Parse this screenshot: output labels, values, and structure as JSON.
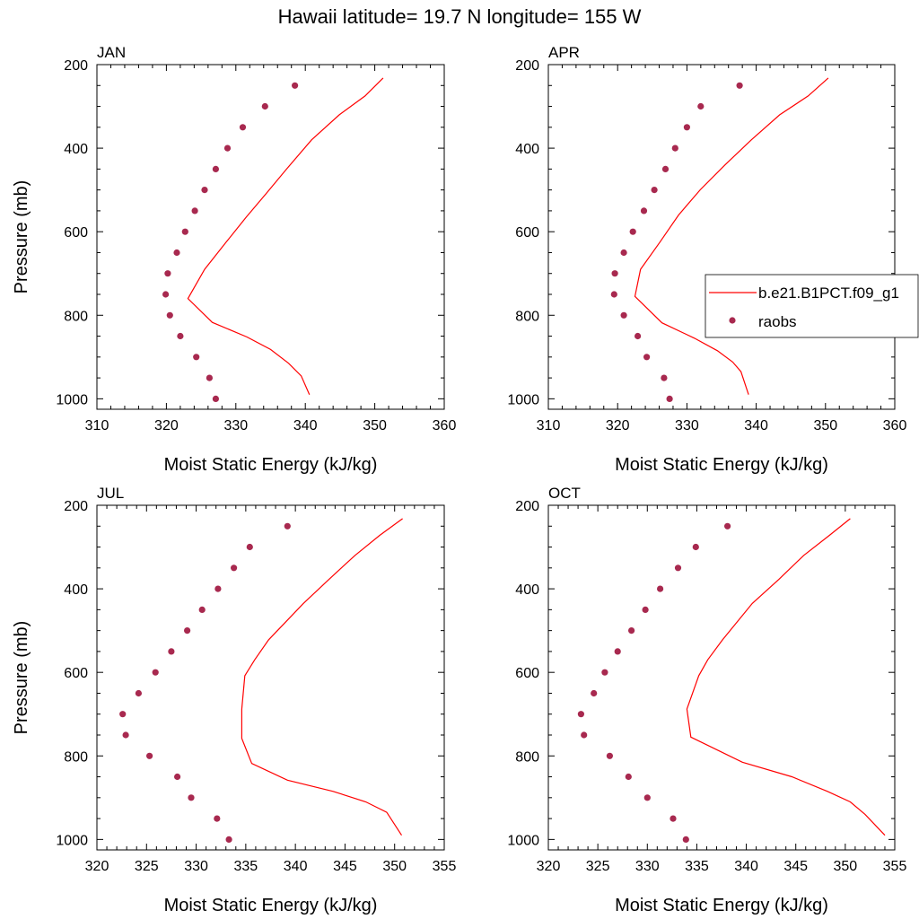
{
  "title": "Hawaii  latitude= 19.7 N longitude= 155 W",
  "legend": {
    "model_label": "b.e21.B1PCT.f09_g1",
    "obs_label": "raobs",
    "placement": "right edge of APR panel"
  },
  "colors": {
    "model_line": "#ff0000",
    "obs_marker": "#a8294f",
    "axes": "#000000",
    "background": "#ffffff"
  },
  "chart_data": [
    {
      "type": "line+scatter",
      "title": "JAN",
      "xlabel": "Moist Static Energy (kJ/kg)",
      "ylabel": "Pressure (mb)",
      "xlim": [
        310,
        360
      ],
      "ylim": [
        1025,
        200
      ],
      "xticks": [
        310,
        320,
        330,
        340,
        350,
        360
      ],
      "yticks": [
        200,
        400,
        600,
        800,
        1000
      ],
      "y_axis_inverted": true,
      "series": [
        {
          "name": "b.e21.B1PCT.f09_g1",
          "kind": "line",
          "points": [
            [
              351.2,
              232
            ],
            [
              348.6,
              275
            ],
            [
              344.9,
              320
            ],
            [
              340.9,
              380
            ],
            [
              337.3,
              450
            ],
            [
              334.3,
              510
            ],
            [
              331.5,
              565
            ],
            [
              328.6,
              625
            ],
            [
              325.5,
              690
            ],
            [
              323.1,
              760
            ],
            [
              326.6,
              817
            ],
            [
              331.6,
              852
            ],
            [
              335.0,
              882
            ],
            [
              337.6,
              915
            ],
            [
              339.4,
              945
            ],
            [
              340.6,
              990
            ]
          ]
        },
        {
          "name": "raobs",
          "kind": "scatter",
          "points": [
            [
              338.5,
              250
            ],
            [
              334.2,
              300
            ],
            [
              331.0,
              350
            ],
            [
              328.8,
              400
            ],
            [
              327.1,
              450
            ],
            [
              325.5,
              500
            ],
            [
              324.1,
              550
            ],
            [
              322.7,
              600
            ],
            [
              321.5,
              650
            ],
            [
              320.2,
              700
            ],
            [
              319.9,
              750
            ],
            [
              320.5,
              800
            ],
            [
              322.0,
              850
            ],
            [
              324.3,
              900
            ],
            [
              326.2,
              950
            ],
            [
              327.1,
              1000
            ]
          ]
        }
      ]
    },
    {
      "type": "line+scatter",
      "title": "APR",
      "xlabel": "Moist Static Energy (kJ/kg)",
      "ylabel": "",
      "xlim": [
        310,
        360
      ],
      "ylim": [
        1025,
        200
      ],
      "xticks": [
        310,
        320,
        330,
        340,
        350,
        360
      ],
      "yticks": [
        200,
        400,
        600,
        800,
        1000
      ],
      "y_axis_inverted": true,
      "series": [
        {
          "name": "b.e21.B1PCT.f09_g1",
          "kind": "line",
          "points": [
            [
              350.4,
              232
            ],
            [
              347.5,
              275
            ],
            [
              343.4,
              320
            ],
            [
              339.3,
              380
            ],
            [
              335.5,
              440
            ],
            [
              331.9,
              500
            ],
            [
              328.8,
              560
            ],
            [
              326.1,
              625
            ],
            [
              323.3,
              690
            ],
            [
              322.5,
              755
            ],
            [
              326.4,
              818
            ],
            [
              331.1,
              855
            ],
            [
              334.4,
              885
            ],
            [
              336.6,
              912
            ],
            [
              337.8,
              935
            ],
            [
              338.9,
              990
            ]
          ]
        },
        {
          "name": "raobs",
          "kind": "scatter",
          "points": [
            [
              337.6,
              250
            ],
            [
              332.0,
              300
            ],
            [
              330.0,
              350
            ],
            [
              328.3,
              400
            ],
            [
              326.9,
              450
            ],
            [
              325.3,
              500
            ],
            [
              323.8,
              550
            ],
            [
              322.2,
              600
            ],
            [
              320.9,
              650
            ],
            [
              319.6,
              700
            ],
            [
              319.5,
              750
            ],
            [
              320.9,
              800
            ],
            [
              322.9,
              850
            ],
            [
              324.2,
              900
            ],
            [
              326.7,
              950
            ],
            [
              327.5,
              1000
            ]
          ]
        }
      ]
    },
    {
      "type": "line+scatter",
      "title": "JUL",
      "xlabel": "Moist Static Energy (kJ/kg)",
      "ylabel": "Pressure (mb)",
      "xlim": [
        320,
        355
      ],
      "ylim": [
        1025,
        200
      ],
      "xticks": [
        320,
        325,
        330,
        335,
        340,
        345,
        350,
        355
      ],
      "yticks": [
        200,
        400,
        600,
        800,
        1000
      ],
      "y_axis_inverted": true,
      "series": [
        {
          "name": "b.e21.B1PCT.f09_g1",
          "kind": "line",
          "points": [
            [
              350.8,
              232
            ],
            [
              348.5,
              272
            ],
            [
              346.0,
              320
            ],
            [
              343.4,
              377
            ],
            [
              340.8,
              435
            ],
            [
              337.3,
              522
            ],
            [
              335.9,
              570
            ],
            [
              334.9,
              608
            ],
            [
              334.6,
              688
            ],
            [
              334.6,
              758
            ],
            [
              335.6,
              818
            ],
            [
              339.2,
              858
            ],
            [
              343.8,
              885
            ],
            [
              347.1,
              910
            ],
            [
              349.2,
              935
            ],
            [
              350.7,
              990
            ]
          ]
        },
        {
          "name": "raobs",
          "kind": "scatter",
          "points": [
            [
              339.2,
              250
            ],
            [
              335.4,
              300
            ],
            [
              333.8,
              350
            ],
            [
              332.2,
              400
            ],
            [
              330.6,
              450
            ],
            [
              329.1,
              500
            ],
            [
              327.5,
              550
            ],
            [
              325.9,
              600
            ],
            [
              324.2,
              650
            ],
            [
              322.6,
              700
            ],
            [
              322.9,
              750
            ],
            [
              325.3,
              800
            ],
            [
              328.1,
              850
            ],
            [
              329.5,
              900
            ],
            [
              332.1,
              950
            ],
            [
              333.3,
              1000
            ]
          ]
        }
      ]
    },
    {
      "type": "line+scatter",
      "title": "OCT",
      "xlabel": "Moist Static Energy (kJ/kg)",
      "ylabel": "",
      "xlim": [
        320,
        355
      ],
      "ylim": [
        1025,
        200
      ],
      "xticks": [
        320,
        325,
        330,
        335,
        340,
        345,
        350,
        355
      ],
      "yticks": [
        200,
        400,
        600,
        800,
        1000
      ],
      "y_axis_inverted": true,
      "series": [
        {
          "name": "b.e21.B1PCT.f09_g1",
          "kind": "line",
          "points": [
            [
              350.5,
              232
            ],
            [
              348.4,
              272
            ],
            [
              345.8,
              320
            ],
            [
              343.3,
              377
            ],
            [
              340.6,
              435
            ],
            [
              337.6,
              522
            ],
            [
              336.1,
              570
            ],
            [
              335.2,
              608
            ],
            [
              334.0,
              688
            ],
            [
              334.4,
              755
            ],
            [
              339.6,
              815
            ],
            [
              344.6,
              850
            ],
            [
              348.2,
              885
            ],
            [
              350.5,
              910
            ],
            [
              352.0,
              940
            ],
            [
              354.0,
              990
            ]
          ]
        },
        {
          "name": "raobs",
          "kind": "scatter",
          "points": [
            [
              338.1,
              250
            ],
            [
              334.9,
              300
            ],
            [
              333.1,
              350
            ],
            [
              331.3,
              400
            ],
            [
              329.8,
              450
            ],
            [
              328.4,
              500
            ],
            [
              327.0,
              550
            ],
            [
              325.7,
              600
            ],
            [
              324.6,
              650
            ],
            [
              323.3,
              700
            ],
            [
              323.6,
              750
            ],
            [
              326.2,
              800
            ],
            [
              328.1,
              850
            ],
            [
              330.0,
              900
            ],
            [
              332.6,
              950
            ],
            [
              333.9,
              1000
            ]
          ]
        }
      ]
    }
  ]
}
